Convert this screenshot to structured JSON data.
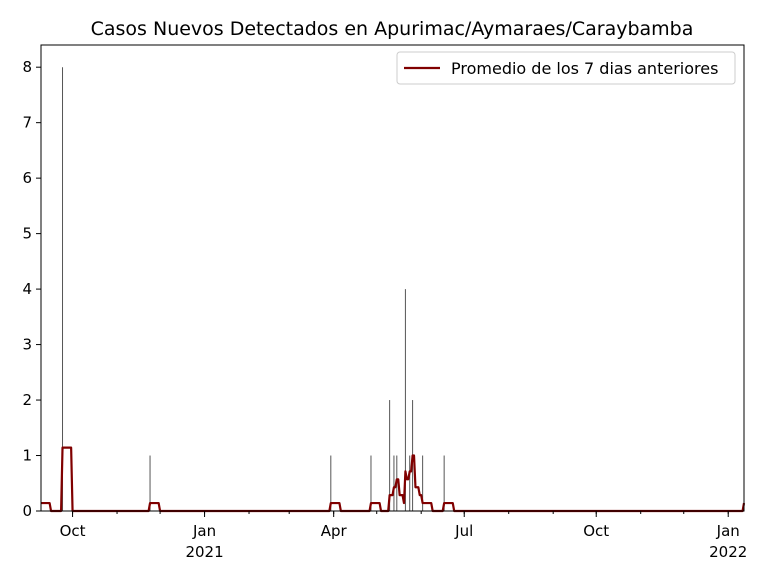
{
  "chart_data": {
    "type": "bar",
    "title": "Casos Nuevos Detectados en Apurimac/Aymaraes/Caraybamba",
    "xlabel": "",
    "ylabel": "",
    "grid": false,
    "legend_position": "top-right",
    "xlim": [
      "2020-09-09",
      "2022-01-12"
    ],
    "ylim": [
      0,
      8.4
    ],
    "y_ticks": [
      0,
      1,
      2,
      3,
      4,
      5,
      6,
      7,
      8
    ],
    "x_ticks": [
      {
        "date": "2020-10-01",
        "label": "Oct",
        "sublabel": ""
      },
      {
        "date": "2021-01-01",
        "label": "Jan",
        "sublabel": "2021"
      },
      {
        "date": "2021-04-01",
        "label": "Apr",
        "sublabel": ""
      },
      {
        "date": "2021-07-01",
        "label": "Jul",
        "sublabel": ""
      },
      {
        "date": "2021-10-01",
        "label": "Oct",
        "sublabel": ""
      },
      {
        "date": "2022-01-01",
        "label": "Jan",
        "sublabel": "2022"
      }
    ],
    "daily_cases": {
      "name": "",
      "color": "#555555",
      "points": [
        {
          "date": "2020-09-09",
          "value": 1
        },
        {
          "date": "2020-09-24",
          "value": 8
        },
        {
          "date": "2020-11-24",
          "value": 1
        },
        {
          "date": "2021-03-30",
          "value": 1
        },
        {
          "date": "2021-04-27",
          "value": 1
        },
        {
          "date": "2021-05-10",
          "value": 2
        },
        {
          "date": "2021-05-13",
          "value": 1
        },
        {
          "date": "2021-05-15",
          "value": 1
        },
        {
          "date": "2021-05-21",
          "value": 4
        },
        {
          "date": "2021-05-24",
          "value": 1
        },
        {
          "date": "2021-05-26",
          "value": 2
        },
        {
          "date": "2021-06-02",
          "value": 1
        },
        {
          "date": "2021-06-17",
          "value": 1
        },
        {
          "date": "2022-01-12",
          "value": 1
        }
      ]
    },
    "rolling_average": {
      "name": "Promedio de los 7 dias anteriores",
      "color": "#800000"
    }
  }
}
